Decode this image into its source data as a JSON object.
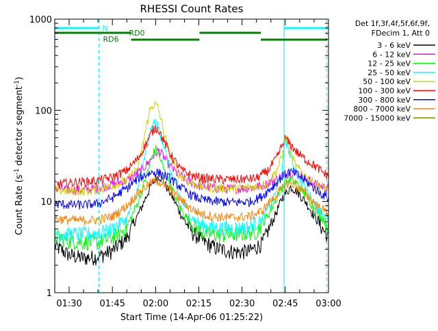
{
  "chart_data": {
    "type": "line",
    "title": "RHESSI Count Rates",
    "xlabel": "Start Time (14-Apr-06 01:25:22)",
    "ylabel_parts": [
      "Count Rate (s",
      "-1",
      " detector segment",
      "-1",
      ")"
    ],
    "log_y": true,
    "ylim": [
      1,
      1000
    ],
    "y_ticks": [
      {
        "v": 1,
        "label": "1"
      },
      {
        "v": 10,
        "label": "10"
      },
      {
        "v": 100,
        "label": "100"
      },
      {
        "v": 1000,
        "label": "1000"
      }
    ],
    "x_range_min": [
      0,
      95
    ],
    "x_ticks": [
      {
        "t": 5,
        "label": "01:30"
      },
      {
        "t": 20,
        "label": "01:45"
      },
      {
        "t": 35,
        "label": "02:00"
      },
      {
        "t": 50,
        "label": "02:15"
      },
      {
        "t": 65,
        "label": "02:30"
      },
      {
        "t": 80,
        "label": "02:45"
      },
      {
        "t": 95,
        "label": "03:00"
      }
    ],
    "legend": {
      "header": [
        "Det 1f,3f,4f,5f,6f,9f,",
        "FDecim 1, Att 0"
      ],
      "placement": "right"
    },
    "attenuator_marks": [
      {
        "label": "N",
        "t": 15.3,
        "color": "#00ffff"
      }
    ],
    "state_labels": [
      {
        "label": "RD0",
        "t": 28.5,
        "color": "#008000"
      },
      {
        "label": "RD6",
        "t": 19.5,
        "color": "#008000"
      }
    ],
    "vertical_lines": [
      {
        "t": 0,
        "color": "#00ffff",
        "dashed": false
      },
      {
        "t": 15.3,
        "color": "#00ffff",
        "dashed": true
      },
      {
        "t": 79.6,
        "color": "#00ffff",
        "dashed": false
      },
      {
        "t": 94.4,
        "color": "#00ffff",
        "dashed": true
      }
    ],
    "state_bars": [
      {
        "color": "#00ffff",
        "level": 0,
        "segments": [
          [
            0,
            15.3
          ],
          [
            79.6,
            95
          ]
        ]
      },
      {
        "color": "#008000",
        "level": 1,
        "segments": [
          [
            0,
            26.5
          ],
          [
            50.2,
            71.5
          ]
        ]
      },
      {
        "color": "#008000",
        "level": 2,
        "segments": [
          [
            26.5,
            50.2
          ],
          [
            71.5,
            94.5
          ]
        ]
      }
    ],
    "series": [
      {
        "name": "3 - 6 keV",
        "color": "#000000",
        "points": [
          [
            0,
            3.3
          ],
          [
            5,
            2.6
          ],
          [
            10,
            2.4
          ],
          [
            15,
            2.5
          ],
          [
            20,
            2.9
          ],
          [
            25,
            4.0
          ],
          [
            30,
            8.5
          ],
          [
            33,
            14
          ],
          [
            35,
            18
          ],
          [
            36.5,
            19
          ],
          [
            38,
            16
          ],
          [
            41,
            11
          ],
          [
            44,
            7
          ],
          [
            48,
            4.5
          ],
          [
            52,
            3.6
          ],
          [
            56,
            3.1
          ],
          [
            60,
            2.9
          ],
          [
            64,
            2.8
          ],
          [
            68,
            2.9
          ],
          [
            72,
            3.5
          ],
          [
            76,
            6.5
          ],
          [
            79,
            11
          ],
          [
            82,
            14.5
          ],
          [
            84,
            13
          ],
          [
            87,
            10
          ],
          [
            90,
            7
          ],
          [
            93,
            5
          ],
          [
            95,
            4
          ]
        ]
      },
      {
        "name": "6 - 12 keV",
        "color": "#ff00ff",
        "points": [
          [
            0,
            14
          ],
          [
            5,
            13.5
          ],
          [
            10,
            13.5
          ],
          [
            15,
            14
          ],
          [
            20,
            15.5
          ],
          [
            25,
            17
          ],
          [
            30,
            22
          ],
          [
            33,
            28
          ],
          [
            35,
            34
          ],
          [
            36,
            36
          ],
          [
            37,
            34
          ],
          [
            39,
            27
          ],
          [
            42,
            21
          ],
          [
            46,
            17
          ],
          [
            50,
            15
          ],
          [
            56,
            14
          ],
          [
            62,
            13.8
          ],
          [
            68,
            14.2
          ],
          [
            72,
            15
          ],
          [
            76,
            17
          ],
          [
            80,
            20
          ],
          [
            82,
            21
          ],
          [
            84,
            20
          ],
          [
            87,
            18
          ],
          [
            90,
            16
          ],
          [
            93,
            14.5
          ],
          [
            95,
            14
          ]
        ]
      },
      {
        "name": "12 - 25 keV",
        "color": "#00ff00",
        "points": [
          [
            0,
            4.2
          ],
          [
            5,
            3.7
          ],
          [
            10,
            3.6
          ],
          [
            15,
            3.6
          ],
          [
            20,
            4.0
          ],
          [
            25,
            5.2
          ],
          [
            29,
            10
          ],
          [
            32,
            20
          ],
          [
            34,
            33
          ],
          [
            35,
            38
          ],
          [
            36,
            33
          ],
          [
            38,
            22
          ],
          [
            41,
            13
          ],
          [
            44,
            8
          ],
          [
            48,
            5.5
          ],
          [
            52,
            4.5
          ],
          [
            58,
            4.3
          ],
          [
            64,
            4.4
          ],
          [
            70,
            4.7
          ],
          [
            74,
            7
          ],
          [
            78,
            13
          ],
          [
            80,
            16
          ],
          [
            82,
            17.5
          ],
          [
            84,
            16
          ],
          [
            87,
            12
          ],
          [
            90,
            8.5
          ],
          [
            93,
            6.5
          ],
          [
            95,
            5.5
          ]
        ]
      },
      {
        "name": "25 - 50 keV",
        "color": "#00ffff",
        "points": [
          [
            0,
            4.6
          ],
          [
            5,
            4.4
          ],
          [
            10,
            4.4
          ],
          [
            15,
            4.5
          ],
          [
            20,
            5.0
          ],
          [
            25,
            6.5
          ],
          [
            29,
            14
          ],
          [
            32,
            40
          ],
          [
            34,
            70
          ],
          [
            35,
            75
          ],
          [
            36,
            65
          ],
          [
            38,
            40
          ],
          [
            40,
            22
          ],
          [
            43,
            12
          ],
          [
            47,
            7
          ],
          [
            51,
            5.5
          ],
          [
            56,
            5.2
          ],
          [
            62,
            5.1
          ],
          [
            68,
            5.3
          ],
          [
            72,
            6.5
          ],
          [
            76,
            11
          ],
          [
            79,
            22
          ],
          [
            80,
            50
          ],
          [
            81,
            38
          ],
          [
            83,
            24
          ],
          [
            86,
            16
          ],
          [
            89,
            11
          ],
          [
            92,
            8
          ],
          [
            95,
            6.5
          ]
        ]
      },
      {
        "name": "50 - 100 keV",
        "color": "#d0d000",
        "points": [
          [
            0,
            13.5
          ],
          [
            5,
            13
          ],
          [
            10,
            13
          ],
          [
            15,
            13.5
          ],
          [
            20,
            15
          ],
          [
            25,
            17
          ],
          [
            29,
            24
          ],
          [
            31,
            50
          ],
          [
            33,
            100
          ],
          [
            34.5,
            120
          ],
          [
            36,
            105
          ],
          [
            38,
            55
          ],
          [
            40,
            32
          ],
          [
            43,
            20
          ],
          [
            47,
            16
          ],
          [
            52,
            14.5
          ],
          [
            58,
            14
          ],
          [
            64,
            14
          ],
          [
            70,
            14.5
          ],
          [
            74,
            16
          ],
          [
            77,
            22
          ],
          [
            79,
            32
          ],
          [
            80,
            50
          ],
          [
            81,
            48
          ],
          [
            82,
            32
          ],
          [
            84,
            24
          ],
          [
            87,
            19
          ],
          [
            90,
            16
          ],
          [
            93,
            14.5
          ],
          [
            95,
            14
          ]
        ]
      },
      {
        "name": "100 - 300 keV",
        "color": "#ff0000",
        "points": [
          [
            0,
            15.5
          ],
          [
            5,
            16
          ],
          [
            10,
            16.5
          ],
          [
            15,
            17
          ],
          [
            20,
            18.5
          ],
          [
            25,
            22
          ],
          [
            29,
            30
          ],
          [
            32,
            45
          ],
          [
            34,
            60
          ],
          [
            35,
            65
          ],
          [
            36,
            62
          ],
          [
            38,
            45
          ],
          [
            41,
            30
          ],
          [
            44,
            22
          ],
          [
            48,
            19
          ],
          [
            52,
            18
          ],
          [
            58,
            17.5
          ],
          [
            64,
            17.5
          ],
          [
            70,
            18
          ],
          [
            74,
            22
          ],
          [
            77,
            30
          ],
          [
            79,
            42
          ],
          [
            80,
            50
          ],
          [
            81,
            45
          ],
          [
            84,
            35
          ],
          [
            87,
            29
          ],
          [
            90,
            25
          ],
          [
            93,
            21
          ],
          [
            95,
            19
          ]
        ]
      },
      {
        "name": "300 - 800 keV",
        "color": "#0000ff",
        "points": [
          [
            0,
            9.5
          ],
          [
            5,
            9.2
          ],
          [
            10,
            9.2
          ],
          [
            15,
            9.5
          ],
          [
            20,
            11
          ],
          [
            25,
            14
          ],
          [
            29,
            18
          ],
          [
            32,
            20
          ],
          [
            34,
            21
          ],
          [
            35.5,
            21
          ],
          [
            37,
            20
          ],
          [
            40,
            18
          ],
          [
            43,
            15
          ],
          [
            47,
            12
          ],
          [
            51,
            10.5
          ],
          [
            56,
            10
          ],
          [
            62,
            9.8
          ],
          [
            68,
            10
          ],
          [
            72,
            11.5
          ],
          [
            76,
            15
          ],
          [
            79,
            19
          ],
          [
            81,
            21
          ],
          [
            83,
            21
          ],
          [
            86,
            18
          ],
          [
            89,
            15
          ],
          [
            92,
            12.5
          ],
          [
            95,
            11
          ]
        ]
      },
      {
        "name": "800 - 7000 keV",
        "color": "#ff8000",
        "points": [
          [
            0,
            6.5
          ],
          [
            5,
            6.3
          ],
          [
            10,
            6.2
          ],
          [
            15,
            6.3
          ],
          [
            20,
            6.9
          ],
          [
            25,
            9
          ],
          [
            29,
            12.5
          ],
          [
            32,
            15
          ],
          [
            34,
            16.5
          ],
          [
            35.5,
            17
          ],
          [
            37,
            16
          ],
          [
            40,
            13.5
          ],
          [
            43,
            11
          ],
          [
            47,
            8.5
          ],
          [
            51,
            7.3
          ],
          [
            56,
            6.8
          ],
          [
            62,
            6.7
          ],
          [
            68,
            6.9
          ],
          [
            72,
            8
          ],
          [
            76,
            11
          ],
          [
            79,
            14
          ],
          [
            81,
            16
          ],
          [
            83,
            15.5
          ],
          [
            86,
            13
          ],
          [
            89,
            10.5
          ],
          [
            92,
            8.5
          ],
          [
            95,
            7.5
          ]
        ]
      },
      {
        "name": "7000 - 15000 keV",
        "color": "#808000",
        "points": []
      }
    ]
  }
}
